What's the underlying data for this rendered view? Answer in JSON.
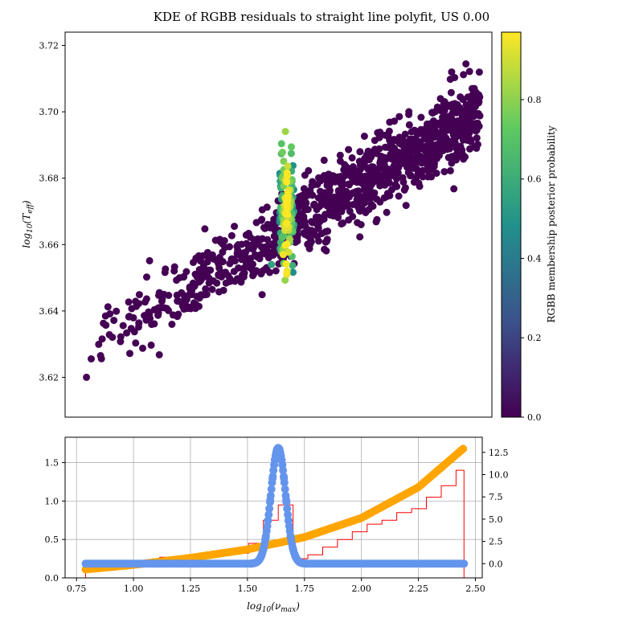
{
  "chart_data": [
    {
      "type": "scatter",
      "title": "KDE of RGBB residuals to straight line polyfit, US 0.00",
      "xlabel": "",
      "ylabel": "log_10(T_eff)",
      "ylim": [
        3.608,
        3.724
      ],
      "yticks": [
        "3.62",
        "3.64",
        "3.66",
        "3.68",
        "3.70",
        "3.72"
      ],
      "xlim": [
        0.7,
        2.5
      ],
      "colormap": "viridis",
      "colorbar": {
        "label": "RGBB membership posterior probability",
        "ticks": [
          "0.0",
          "0.2",
          "0.4",
          "0.6",
          "0.8"
        ],
        "range": [
          0.0,
          0.97
        ],
        "colors": [
          "#440154",
          "#3b528b",
          "#21918c",
          "#5ec962",
          "#fde725"
        ]
      },
      "trend": {
        "x_start": 0.79,
        "y_start": 3.628,
        "x_end": 2.45,
        "y_end": 3.7,
        "scatter_spread": 0.0055
      },
      "rgbb_clump": {
        "x_center": 1.635,
        "x_width": 0.03,
        "y_center": 3.671,
        "y_spread": 0.009
      },
      "n_points": 1100,
      "notable_points": [
        {
          "x": 0.79,
          "y": 3.62,
          "p": 0.0
        },
        {
          "x": 1.635,
          "y": 3.651,
          "p": 0.92
        },
        {
          "x": 1.62,
          "y": 3.657,
          "p": 0.95
        },
        {
          "x": 1.57,
          "y": 3.654,
          "p": 0.55
        },
        {
          "x": 2.33,
          "y": 3.712,
          "p": 0.0
        }
      ]
    },
    {
      "type": "histogram+line",
      "xlabel": "log_10(ν_max)",
      "xlim": [
        0.7,
        2.53
      ],
      "xticks": [
        "0.75",
        "1.00",
        "1.25",
        "1.50",
        "1.75",
        "2.00",
        "2.25",
        "2.50"
      ],
      "ylim_left": [
        0,
        1.83
      ],
      "yticks_left": [
        "0.0",
        "0.5",
        "1.0",
        "1.5"
      ],
      "ylim_right": [
        -1.6,
        14.2
      ],
      "yticks_right": [
        "0.0",
        "2.5",
        "5.0",
        "7.5",
        "10.0",
        "12.5"
      ],
      "grid": true,
      "series": [
        {
          "kind": "histogram",
          "color": "#ff0000",
          "bin_edges": [
            0.79,
            0.855,
            0.92,
            0.985,
            1.05,
            1.115,
            1.18,
            1.245,
            1.31,
            1.375,
            1.44,
            1.505,
            1.57,
            1.635,
            1.7,
            1.765,
            1.83,
            1.895,
            1.96,
            2.025,
            2.09,
            2.155,
            2.22,
            2.285,
            2.35,
            2.415,
            2.45
          ],
          "values": [
            0.12,
            0.1,
            0.12,
            0.2,
            0.2,
            0.27,
            0.23,
            0.28,
            0.28,
            0.3,
            0.32,
            0.45,
            0.75,
            0.95,
            0.25,
            0.3,
            0.4,
            0.5,
            0.6,
            0.7,
            0.75,
            0.85,
            0.9,
            1.05,
            1.2,
            1.4
          ]
        },
        {
          "kind": "polyfit-curve",
          "color": "#ffa500",
          "points": [
            [
              0.79,
              0.11
            ],
            [
              1.0,
              0.17
            ],
            [
              1.25,
              0.26
            ],
            [
              1.5,
              0.37
            ],
            [
              1.75,
              0.53
            ],
            [
              2.0,
              0.78
            ],
            [
              2.25,
              1.18
            ],
            [
              2.45,
              1.69
            ]
          ]
        },
        {
          "kind": "kde",
          "axis": "right",
          "color": "#6495ed",
          "baseline": 0.0,
          "peak": {
            "x": 1.635,
            "y": 13.0,
            "sigma": 0.032
          }
        }
      ]
    }
  ]
}
